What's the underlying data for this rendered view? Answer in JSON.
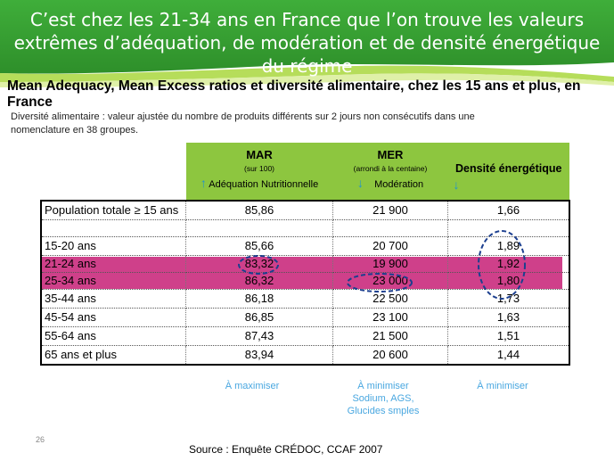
{
  "slide": {
    "title": "C’est chez les 21-34 ans en France que l’on trouve les valeurs extrêmes d’adéquation, de modération et de densité énergétique du régime",
    "subtitle": "Mean Adequacy, Mean Excess ratios et diversité alimentaire, chez les 15 ans et plus, en France",
    "note": "Diversité  alimentaire : valeur ajustée du nombre de produits différents  sur 2 jours non consécutifs dans une nomenclature en 38 groupes.",
    "page_number": "26",
    "source": "Source : Enquête CRÉDOC, CCAF 2007"
  },
  "table": {
    "headers": {
      "mar": {
        "title": "MAR",
        "sub": "(sur 100)",
        "desc": "Adéquation Nutritionnelle",
        "arrow": "↑"
      },
      "mer": {
        "title": "MER",
        "sub": "(arrondi à la centaine)",
        "desc": "Modération",
        "arrow": "↓"
      },
      "den": {
        "title": "Densité énergétique",
        "arrow": "↓"
      }
    },
    "total": {
      "label": "Population totale ≥ 15 ans",
      "mar": "85,86",
      "mer": "21 900",
      "den": "1,66"
    },
    "rows": [
      {
        "label": "15-20 ans",
        "mar": "85,66",
        "mer": "20 700",
        "den": "1,89"
      },
      {
        "label": "21-24 ans",
        "mar": "83,32",
        "mer": "19 900",
        "den": "1,92"
      },
      {
        "label": "25-34 ans",
        "mar": "86,32",
        "mer": "23 000",
        "den": "1,80"
      },
      {
        "label": "35-44 ans",
        "mar": "86,18",
        "mer": "22 500",
        "den": "1,73"
      },
      {
        "label": "45-54 ans",
        "mar": "86,85",
        "mer": "23 100",
        "den": "1,63"
      },
      {
        "label": "55-64 ans",
        "mar": "87,43",
        "mer": "21 500",
        "den": "1,51"
      },
      {
        "label": "65 ans et plus",
        "mar": "83,94",
        "mer": "20 600",
        "den": "1,44"
      }
    ],
    "highlight_color": "#c8267a",
    "header_color": "#8dc63f"
  },
  "footer": {
    "mar": "À maximiser",
    "mer_line1": "À minimiser",
    "mer_line2": "Sodium, AGS,",
    "mer_line3": "Glucides smples",
    "den": "À minimiser"
  }
}
